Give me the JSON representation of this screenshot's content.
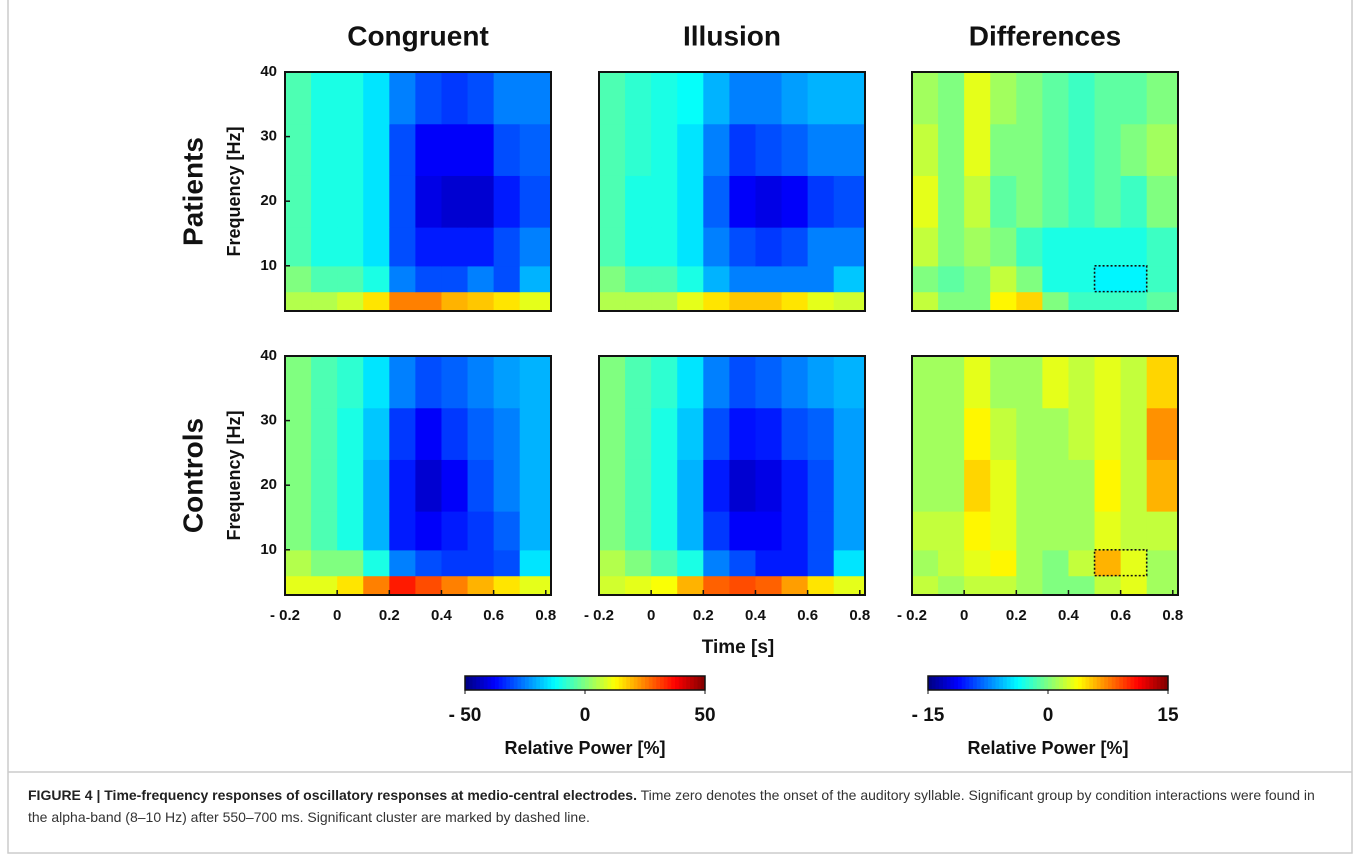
{
  "chart_data": [
    {
      "type": "heatmap",
      "title": "Congruent",
      "ylabel": "Frequency [Hz]",
      "xbins": [
        -0.2,
        -0.1,
        0,
        0.1,
        0.2,
        0.3,
        0.4,
        0.5,
        0.6,
        0.7,
        0.82
      ],
      "ybins": [
        3,
        6,
        10,
        16,
        24,
        32,
        40
      ],
      "xlim": [
        -0.2,
        0.82
      ],
      "ylim": [
        3,
        40
      ],
      "zlim": [
        -50,
        50
      ],
      "yticks": [
        10,
        20,
        30,
        40
      ],
      "z": [
        [
          5,
          5,
          8,
          15,
          25,
          25,
          20,
          18,
          15,
          10
        ],
        [
          0,
          -5,
          -5,
          -10,
          -25,
          -30,
          -30,
          -25,
          -30,
          -20
        ],
        [
          -5,
          -10,
          -10,
          -15,
          -30,
          -35,
          -35,
          -35,
          -30,
          -25
        ],
        [
          -5,
          -10,
          -10,
          -15,
          -30,
          -40,
          -42,
          -42,
          -35,
          -30
        ],
        [
          -5,
          -10,
          -10,
          -15,
          -30,
          -38,
          -38,
          -38,
          -30,
          -28
        ],
        [
          -5,
          -10,
          -10,
          -15,
          -25,
          -30,
          -32,
          -30,
          -25,
          -25
        ]
      ]
    },
    {
      "type": "heatmap",
      "title": "Illusion",
      "xbins": [
        -0.2,
        -0.1,
        0,
        0.1,
        0.2,
        0.3,
        0.4,
        0.5,
        0.6,
        0.7,
        0.82
      ],
      "ybins": [
        3,
        6,
        10,
        16,
        24,
        32,
        40
      ],
      "xlim": [
        -0.2,
        0.82
      ],
      "ylim": [
        3,
        40
      ],
      "zlim": [
        -50,
        50
      ],
      "z": [
        [
          5,
          5,
          5,
          10,
          15,
          18,
          18,
          15,
          10,
          8
        ],
        [
          0,
          -5,
          -5,
          -10,
          -20,
          -25,
          -25,
          -25,
          -25,
          -18
        ],
        [
          -5,
          -10,
          -10,
          -15,
          -25,
          -30,
          -32,
          -30,
          -25,
          -25
        ],
        [
          -5,
          -10,
          -10,
          -15,
          -28,
          -38,
          -40,
          -38,
          -32,
          -30
        ],
        [
          -5,
          -8,
          -10,
          -15,
          -25,
          -32,
          -30,
          -28,
          -25,
          -25
        ],
        [
          -5,
          -8,
          -10,
          -12,
          -20,
          -25,
          -25,
          -22,
          -20,
          -20
        ]
      ]
    },
    {
      "type": "heatmap",
      "title": "Differences",
      "xbins": [
        -0.2,
        -0.1,
        0,
        0.1,
        0.2,
        0.3,
        0.4,
        0.5,
        0.6,
        0.7,
        0.82
      ],
      "ybins": [
        3,
        6,
        10,
        16,
        24,
        32,
        40
      ],
      "xlim": [
        -0.2,
        0.82
      ],
      "ylim": [
        3,
        40
      ],
      "zlim": [
        -15,
        15
      ],
      "z": [
        [
          2,
          0,
          0,
          4,
          5,
          0,
          -2,
          -2,
          -2,
          -1
        ],
        [
          0,
          -1,
          0,
          2,
          0,
          -3,
          -3,
          -4,
          -4,
          -2
        ],
        [
          2,
          0,
          1,
          0,
          -2,
          -3,
          -3,
          -3,
          -3,
          -2
        ],
        [
          3,
          0,
          2,
          -1,
          0,
          -1,
          -2,
          -1,
          -2,
          0
        ],
        [
          2,
          0,
          3,
          0,
          0,
          -1,
          -2,
          -1,
          0,
          1
        ],
        [
          1,
          0,
          3,
          1,
          0,
          -1,
          -2,
          -1,
          -1,
          0
        ]
      ],
      "annotations": [
        {
          "x": [
            0.5,
            0.7
          ],
          "y": [
            6,
            10
          ]
        }
      ]
    },
    {
      "type": "heatmap",
      "ylabel": "Frequency [Hz]",
      "xbins": [
        -0.2,
        -0.1,
        0,
        0.1,
        0.2,
        0.3,
        0.4,
        0.5,
        0.6,
        0.7,
        0.82
      ],
      "ybins": [
        3,
        6,
        10,
        16,
        24,
        32,
        40
      ],
      "xlim": [
        -0.2,
        0.82
      ],
      "ylim": [
        3,
        40
      ],
      "zlim": [
        -50,
        50
      ],
      "yticks": [
        10,
        20,
        30,
        40
      ],
      "xticks": [
        {
          "value": -0.2,
          "label": "- 0.2"
        },
        0,
        0.2,
        0.4,
        0.6,
        0.8
      ],
      "z": [
        [
          10,
          10,
          15,
          25,
          35,
          30,
          25,
          20,
          15,
          10
        ],
        [
          5,
          0,
          0,
          -10,
          -25,
          -30,
          -32,
          -32,
          -30,
          -15
        ],
        [
          0,
          -5,
          -10,
          -20,
          -35,
          -38,
          -35,
          -32,
          -28,
          -20
        ],
        [
          0,
          -5,
          -10,
          -20,
          -35,
          -42,
          -38,
          -30,
          -25,
          -20
        ],
        [
          0,
          -5,
          -10,
          -18,
          -32,
          -38,
          -32,
          -28,
          -25,
          -20
        ],
        [
          0,
          -5,
          -8,
          -15,
          -25,
          -30,
          -28,
          -25,
          -22,
          -20
        ]
      ]
    },
    {
      "type": "heatmap",
      "xbins": [
        -0.2,
        -0.1,
        0,
        0.1,
        0.2,
        0.3,
        0.4,
        0.5,
        0.6,
        0.7,
        0.82
      ],
      "ybins": [
        3,
        6,
        10,
        16,
        24,
        32,
        40
      ],
      "xlim": [
        -0.2,
        0.82
      ],
      "ylim": [
        3,
        40
      ],
      "zlim": [
        -50,
        50
      ],
      "xticks": [
        {
          "value": -0.2,
          "label": "- 0.2"
        },
        0,
        0.2,
        0.4,
        0.6,
        0.8
      ],
      "z": [
        [
          8,
          10,
          12,
          20,
          28,
          30,
          28,
          22,
          15,
          10
        ],
        [
          5,
          0,
          -5,
          -10,
          -25,
          -30,
          -35,
          -35,
          -30,
          -15
        ],
        [
          0,
          -5,
          -10,
          -20,
          -32,
          -38,
          -38,
          -35,
          -30,
          -22
        ],
        [
          0,
          -5,
          -10,
          -20,
          -35,
          -42,
          -40,
          -35,
          -30,
          -22
        ],
        [
          0,
          -5,
          -10,
          -18,
          -30,
          -36,
          -35,
          -30,
          -28,
          -22
        ],
        [
          0,
          -5,
          -8,
          -15,
          -25,
          -30,
          -28,
          -25,
          -22,
          -20
        ]
      ]
    },
    {
      "type": "heatmap",
      "xbins": [
        -0.2,
        -0.1,
        0,
        0.1,
        0.2,
        0.3,
        0.4,
        0.5,
        0.6,
        0.7,
        0.82
      ],
      "ybins": [
        3,
        6,
        10,
        16,
        24,
        32,
        40
      ],
      "xlim": [
        -0.2,
        0.82
      ],
      "ylim": [
        3,
        40
      ],
      "zlim": [
        -15,
        15
      ],
      "xticks": [
        {
          "value": -0.2,
          "label": "- 0.2"
        },
        0,
        0.2,
        0.4,
        0.6,
        0.8
      ],
      "z": [
        [
          2,
          1,
          2,
          2,
          1,
          0,
          0,
          2,
          3,
          1
        ],
        [
          1,
          2,
          3,
          4,
          1,
          0,
          2,
          6,
          3,
          1
        ],
        [
          2,
          2,
          4,
          3,
          1,
          1,
          1,
          3,
          2,
          2
        ],
        [
          1,
          1,
          5,
          3,
          1,
          1,
          1,
          4,
          2,
          6
        ],
        [
          1,
          1,
          4,
          2,
          1,
          1,
          2,
          3,
          2,
          7
        ],
        [
          1,
          1,
          3,
          1,
          1,
          3,
          2,
          3,
          2,
          5
        ]
      ],
      "annotations": [
        {
          "x": [
            0.5,
            0.7
          ],
          "y": [
            6,
            10
          ]
        }
      ]
    }
  ],
  "figure": {
    "row_labels": [
      "Patients",
      "Controls"
    ],
    "xlabel": "Time [s]",
    "colormap": "jet",
    "colorbars": [
      {
        "clim": [
          -50,
          50
        ],
        "ticks": [
          {
            "value": -50,
            "label": "- 50"
          },
          0,
          50
        ],
        "label": "Relative Power [%]"
      },
      {
        "clim": [
          -15,
          15
        ],
        "ticks": [
          {
            "value": -15,
            "label": "- 15"
          },
          0,
          15
        ],
        "label": "Relative Power [%]"
      }
    ]
  },
  "caption": {
    "label": "FIGURE 4 | Time-frequency responses of oscillatory responses at medio-central electrodes.",
    "text": "Time zero denotes the onset of the auditory syllable. Significant group by condition interactions were found in the alpha-band (8–10 Hz) after 550–700 ms. Significant cluster are marked by dashed line."
  }
}
